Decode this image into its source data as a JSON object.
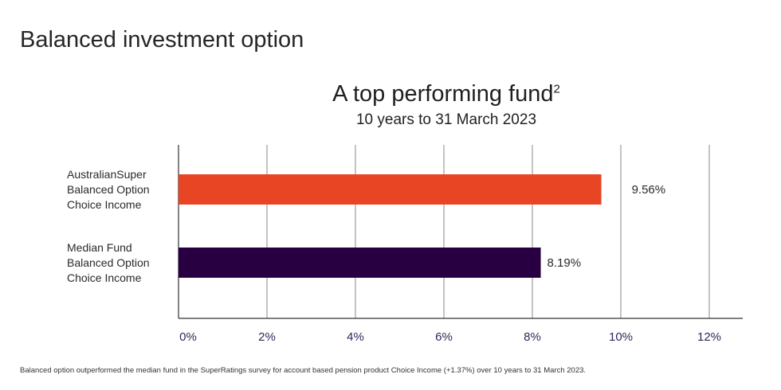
{
  "page": {
    "heading": "Balanced investment option",
    "footnote": "Balanced option outperformed the median fund in the SuperRatings survey for account based pension product Choice Income (+1.37%) over 10 years to 31 March 2023."
  },
  "chart_data": {
    "type": "bar",
    "orientation": "horizontal",
    "title": "A top performing fund",
    "title_superscript": "2",
    "subtitle": "10 years to 31 March 2023",
    "categories": [
      [
        "AustralianSuper",
        "Balanced Option",
        "Choice Income"
      ],
      [
        "Median Fund",
        "Balanced Option",
        "Choice Income"
      ]
    ],
    "values": [
      9.56,
      8.19
    ],
    "data_labels": [
      "9.56%",
      "8.19%"
    ],
    "colors": [
      "#e84524",
      "#280042"
    ],
    "xlim": [
      0,
      12
    ],
    "xticks": [
      0,
      2,
      4,
      6,
      8,
      10,
      12
    ],
    "xtick_labels": [
      "0%",
      "2%",
      "4%",
      "6%",
      "8%",
      "10%",
      "12%"
    ],
    "grid": true,
    "xlabel": "",
    "ylabel": ""
  }
}
